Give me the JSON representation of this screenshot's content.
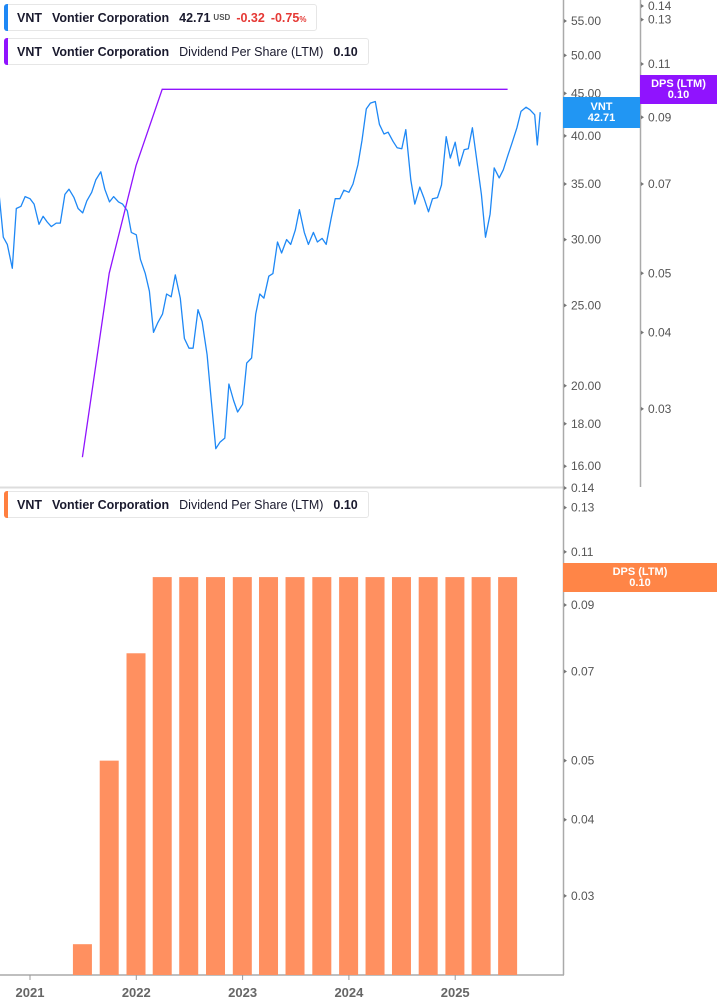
{
  "legend_price": {
    "ticker": "VNT",
    "name": "Vontier Corporation",
    "price": "42.71",
    "currency": "USD",
    "change": "-0.32",
    "change_pct": "-0.75",
    "pct_sign": "%",
    "color": "#1e88f5"
  },
  "legend_dps_top": {
    "ticker": "VNT",
    "name": "Vontier Corporation",
    "metric": "Dividend Per Share (LTM)",
    "value": "0.10",
    "color": "#9013fe"
  },
  "legend_dps_bottom": {
    "ticker": "VNT",
    "name": "Vontier Corporation",
    "metric": "Dividend Per Share (LTM)",
    "value": "0.10",
    "color": "#ff7f3f"
  },
  "badges": {
    "price": {
      "label": "VNT",
      "value": "42.71",
      "color": "#2196f3"
    },
    "dps_top": {
      "label": "DPS (LTM)",
      "value": "0.10",
      "color": "#9013fe"
    },
    "dps_bottom": {
      "label": "DPS (LTM)",
      "value": "0.10",
      "color": "#ff8547"
    }
  },
  "chart_data": [
    {
      "type": "line",
      "scale": "log",
      "series": [
        {
          "name": "VNT",
          "axis": "price",
          "color": "#1e88f5",
          "points": [
            [
              "2020-09-15",
              34.5
            ],
            [
              "2020-10-01",
              30.2
            ],
            [
              "2020-10-15",
              29.6
            ],
            [
              "2020-11-01",
              27.7
            ],
            [
              "2020-11-15",
              32.7
            ],
            [
              "2020-12-01",
              32.9
            ],
            [
              "2020-12-15",
              33.8
            ],
            [
              "2021-01-01",
              33.6
            ],
            [
              "2021-01-15",
              33.1
            ],
            [
              "2021-02-01",
              31.3
            ],
            [
              "2021-02-15",
              32.0
            ],
            [
              "2021-03-01",
              31.5
            ],
            [
              "2021-03-15",
              31.1
            ],
            [
              "2021-04-01",
              31.4
            ],
            [
              "2021-04-15",
              31.4
            ],
            [
              "2021-05-01",
              34.0
            ],
            [
              "2021-05-15",
              34.5
            ],
            [
              "2021-06-01",
              33.7
            ],
            [
              "2021-06-15",
              32.7
            ],
            [
              "2021-07-01",
              32.3
            ],
            [
              "2021-07-15",
              33.4
            ],
            [
              "2021-08-01",
              34.2
            ],
            [
              "2021-08-15",
              35.4
            ],
            [
              "2021-09-01",
              36.2
            ],
            [
              "2021-09-15",
              34.5
            ],
            [
              "2021-10-01",
              33.3
            ],
            [
              "2021-10-15",
              33.8
            ],
            [
              "2021-11-01",
              33.3
            ],
            [
              "2021-11-15",
              33.1
            ],
            [
              "2021-12-01",
              32.5
            ],
            [
              "2021-12-15",
              30.6
            ],
            [
              "2022-01-01",
              30.4
            ],
            [
              "2022-01-15",
              28.4
            ],
            [
              "2022-02-01",
              27.3
            ],
            [
              "2022-02-15",
              26.0
            ],
            [
              "2022-03-01",
              23.2
            ],
            [
              "2022-03-15",
              23.8
            ],
            [
              "2022-04-01",
              24.4
            ],
            [
              "2022-04-15",
              25.8
            ],
            [
              "2022-05-01",
              25.6
            ],
            [
              "2022-05-15",
              27.2
            ],
            [
              "2022-06-01",
              25.5
            ],
            [
              "2022-06-15",
              22.8
            ],
            [
              "2022-07-01",
              22.2
            ],
            [
              "2022-07-15",
              22.2
            ],
            [
              "2022-08-01",
              24.7
            ],
            [
              "2022-08-15",
              23.9
            ],
            [
              "2022-09-01",
              21.8
            ],
            [
              "2022-09-15",
              19.3
            ],
            [
              "2022-10-01",
              16.8
            ],
            [
              "2022-10-15",
              17.1
            ],
            [
              "2022-11-01",
              17.3
            ],
            [
              "2022-11-15",
              20.1
            ],
            [
              "2022-12-01",
              19.2
            ],
            [
              "2022-12-15",
              18.6
            ],
            [
              "2023-01-01",
              19.0
            ],
            [
              "2023-01-15",
              21.3
            ],
            [
              "2023-02-01",
              21.6
            ],
            [
              "2023-02-15",
              24.4
            ],
            [
              "2023-03-01",
              25.8
            ],
            [
              "2023-03-15",
              25.5
            ],
            [
              "2023-04-01",
              27.1
            ],
            [
              "2023-04-15",
              27.3
            ],
            [
              "2023-05-01",
              29.8
            ],
            [
              "2023-05-15",
              28.9
            ],
            [
              "2023-06-01",
              30.0
            ],
            [
              "2023-06-15",
              29.6
            ],
            [
              "2023-07-01",
              30.8
            ],
            [
              "2023-07-15",
              32.6
            ],
            [
              "2023-08-01",
              30.6
            ],
            [
              "2023-08-15",
              29.6
            ],
            [
              "2023-09-01",
              30.6
            ],
            [
              "2023-09-15",
              29.8
            ],
            [
              "2023-10-01",
              30.1
            ],
            [
              "2023-10-15",
              29.6
            ],
            [
              "2023-11-01",
              31.8
            ],
            [
              "2023-11-15",
              33.6
            ],
            [
              "2023-12-01",
              33.6
            ],
            [
              "2023-12-15",
              34.4
            ],
            [
              "2024-01-01",
              34.2
            ],
            [
              "2024-01-15",
              35.0
            ],
            [
              "2024-02-01",
              36.9
            ],
            [
              "2024-02-15",
              39.5
            ],
            [
              "2024-03-01",
              43.1
            ],
            [
              "2024-03-15",
              43.8
            ],
            [
              "2024-04-01",
              44.0
            ],
            [
              "2024-04-15",
              41.3
            ],
            [
              "2024-05-01",
              40.2
            ],
            [
              "2024-05-15",
              40.4
            ],
            [
              "2024-06-01",
              39.4
            ],
            [
              "2024-06-15",
              38.7
            ],
            [
              "2024-07-01",
              38.6
            ],
            [
              "2024-07-15",
              40.7
            ],
            [
              "2024-08-01",
              35.4
            ],
            [
              "2024-08-15",
              33.1
            ],
            [
              "2024-09-01",
              34.7
            ],
            [
              "2024-09-15",
              33.7
            ],
            [
              "2024-10-01",
              32.4
            ],
            [
              "2024-10-15",
              33.6
            ],
            [
              "2024-11-01",
              33.7
            ],
            [
              "2024-11-15",
              34.9
            ],
            [
              "2024-12-01",
              39.9
            ],
            [
              "2024-12-15",
              37.6
            ],
            [
              "2025-01-01",
              39.3
            ],
            [
              "2025-01-15",
              36.8
            ],
            [
              "2025-02-01",
              38.5
            ],
            [
              "2025-02-15",
              38.6
            ],
            [
              "2025-03-01",
              40.9
            ],
            [
              "2025-03-15",
              37.6
            ],
            [
              "2025-04-01",
              34.0
            ],
            [
              "2025-04-15",
              30.2
            ],
            [
              "2025-05-01",
              32.2
            ],
            [
              "2025-05-15",
              36.6
            ],
            [
              "2025-06-01",
              35.6
            ],
            [
              "2025-06-15",
              36.4
            ],
            [
              "2025-07-01",
              37.9
            ],
            [
              "2025-07-15",
              39.2
            ],
            [
              "2025-08-01",
              40.9
            ],
            [
              "2025-08-15",
              42.8
            ],
            [
              "2025-09-01",
              43.3
            ],
            [
              "2025-09-15",
              43.0
            ],
            [
              "2025-10-01",
              42.4
            ],
            [
              "2025-10-10",
              39.0
            ],
            [
              "2025-10-20",
              42.71
            ]
          ]
        },
        {
          "name": "Dividend Per Share (LTM)",
          "axis": "dps",
          "color": "#9013fe",
          "points": [
            [
              "2021-06-30",
              0.025
            ],
            [
              "2021-09-30",
              0.05
            ],
            [
              "2021-12-31",
              0.075
            ],
            [
              "2022-03-31",
              0.1
            ],
            [
              "2025-06-30",
              0.1
            ]
          ]
        }
      ],
      "price_axis": {
        "ticks": [
          "55.00",
          "50.00",
          "45.00",
          "40.00",
          "35.00",
          "30.00",
          "25.00",
          "20.00",
          "18.00",
          "16.00"
        ]
      },
      "dps_axis": {
        "ticks": [
          "0.14",
          "0.13",
          "0.11",
          "0.09",
          "0.07",
          "0.05",
          "0.04",
          "0.03"
        ]
      }
    },
    {
      "type": "bar",
      "scale": "log",
      "name": "Dividend Per Share (LTM)",
      "color": "#ff9060",
      "categories": [
        "2021-06-30",
        "2021-09-30",
        "2021-12-31",
        "2022-03-31",
        "2022-06-30",
        "2022-09-30",
        "2022-12-31",
        "2023-03-31",
        "2023-06-30",
        "2023-09-30",
        "2023-12-31",
        "2024-03-31",
        "2024-06-30",
        "2024-09-30",
        "2024-12-31",
        "2025-03-31",
        "2025-06-30"
      ],
      "values": [
        0.025,
        0.05,
        0.075,
        0.1,
        0.1,
        0.1,
        0.1,
        0.1,
        0.1,
        0.1,
        0.1,
        0.1,
        0.1,
        0.1,
        0.1,
        0.1,
        0.1
      ],
      "y_axis": {
        "ticks": [
          "0.14",
          "0.13",
          "0.11",
          "0.09",
          "0.07",
          "0.05",
          "0.04",
          "0.03"
        ]
      },
      "x_axis": {
        "ticks": [
          "2021",
          "2022",
          "2023",
          "2024",
          "2025"
        ]
      }
    }
  ]
}
